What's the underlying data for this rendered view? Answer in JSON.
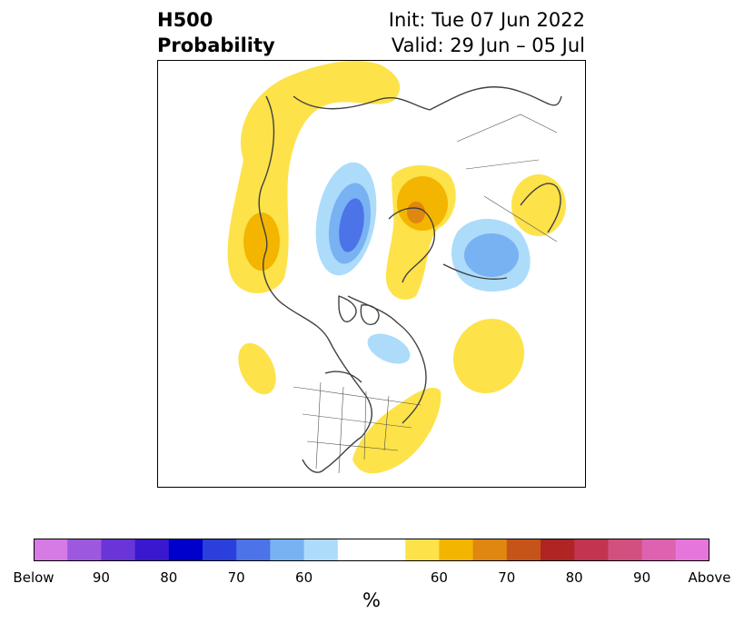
{
  "title": {
    "left_line1": "H500",
    "left_line2": "Probability",
    "right_line1": "Init: Tue 07 Jun 2022",
    "right_line2": "Valid: 29 Jun – 05 Jul"
  },
  "colorbar": {
    "colors": [
      "#d67ae6",
      "#9c59e0",
      "#6a35d8",
      "#3a18d0",
      "#0000cc",
      "#2a3fdc",
      "#4c73e8",
      "#78b2f2",
      "#acdcfa",
      "#ffffff",
      "#ffffff",
      "#fde24a",
      "#f3b500",
      "#df8710",
      "#c65418",
      "#b02424",
      "#c23450",
      "#d25080",
      "#de62b0",
      "#e676dc"
    ],
    "tick_labels": [
      "Below",
      "90",
      "80",
      "70",
      "60",
      "60",
      "70",
      "80",
      "90",
      "Above"
    ],
    "label": "%"
  },
  "map": {
    "projection": "north polar stereographic",
    "below_colors": {
      "light": "#acdcfa",
      "mid": "#78b2f2",
      "dark": "#4c73e8",
      "darker": "#2a3fdc"
    },
    "above_colors": {
      "light": "#fde24a",
      "mid": "#f3b500",
      "dark": "#df8710"
    },
    "coast_color": "#404040",
    "border_color": "#505050"
  }
}
